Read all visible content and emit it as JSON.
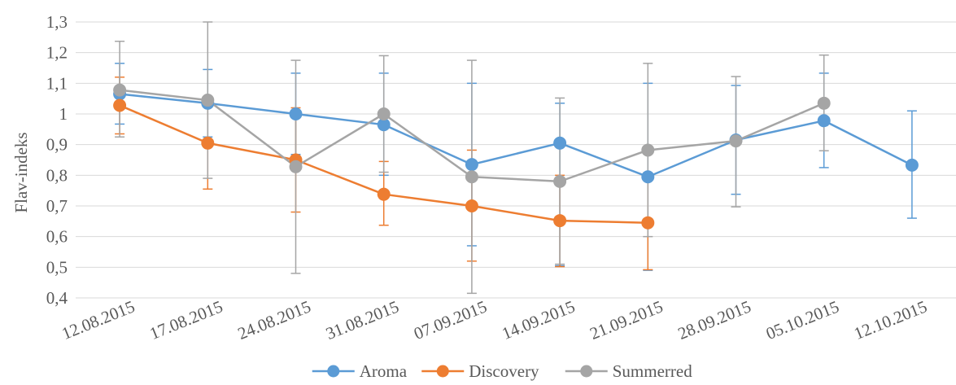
{
  "chart_data": {
    "type": "line",
    "title": "",
    "xlabel": "",
    "ylabel": "Flav-indeks",
    "ylim": [
      0.4,
      1.3
    ],
    "y_ticks": [
      "0,4",
      "0,5",
      "0,6",
      "0,7",
      "0,8",
      "0,9",
      "1",
      "1,1",
      "1,2",
      "1,3"
    ],
    "categories": [
      "12.08.2015",
      "17.08.2015",
      "24.08.2015",
      "31.08.2015",
      "07.09.2015",
      "14.09.2015",
      "21.09.2015",
      "28.09.2015",
      "05.10.2015",
      "12.10.2015"
    ],
    "grid": true,
    "legend_position": "bottom",
    "error_bars": true,
    "series": [
      {
        "name": "Aroma",
        "color": "#5B9BD5",
        "values": [
          1.065,
          1.035,
          1.0,
          0.965,
          0.835,
          0.905,
          0.795,
          0.915,
          0.978,
          0.833
        ],
        "error_upper": [
          1.165,
          1.145,
          1.133,
          1.133,
          1.1,
          1.035,
          1.1,
          1.093,
          1.133,
          1.01
        ],
        "error_lower": [
          0.967,
          0.925,
          0.868,
          0.8,
          0.57,
          0.505,
          0.49,
          0.738,
          0.825,
          0.66
        ]
      },
      {
        "name": "Discovery",
        "color": "#ED7D31",
        "values": [
          1.028,
          0.905,
          0.85,
          0.738,
          0.7,
          0.652,
          0.645,
          null,
          null,
          null
        ],
        "error_upper": [
          1.12,
          1.055,
          1.02,
          0.845,
          0.882,
          0.8,
          0.8,
          null,
          null,
          null
        ],
        "error_lower": [
          0.935,
          0.755,
          0.68,
          0.637,
          0.52,
          0.502,
          0.492,
          null,
          null,
          null
        ]
      },
      {
        "name": "Summerred",
        "color": "#A5A5A5",
        "values": [
          1.078,
          1.045,
          0.828,
          1.0,
          0.795,
          0.78,
          0.882,
          0.912,
          1.035,
          null
        ],
        "error_upper": [
          1.237,
          1.3,
          1.175,
          1.19,
          1.175,
          1.052,
          1.165,
          1.122,
          1.192,
          null
        ],
        "error_lower": [
          0.925,
          0.79,
          0.48,
          0.81,
          0.415,
          0.51,
          0.6,
          0.697,
          0.88,
          null
        ]
      }
    ]
  }
}
